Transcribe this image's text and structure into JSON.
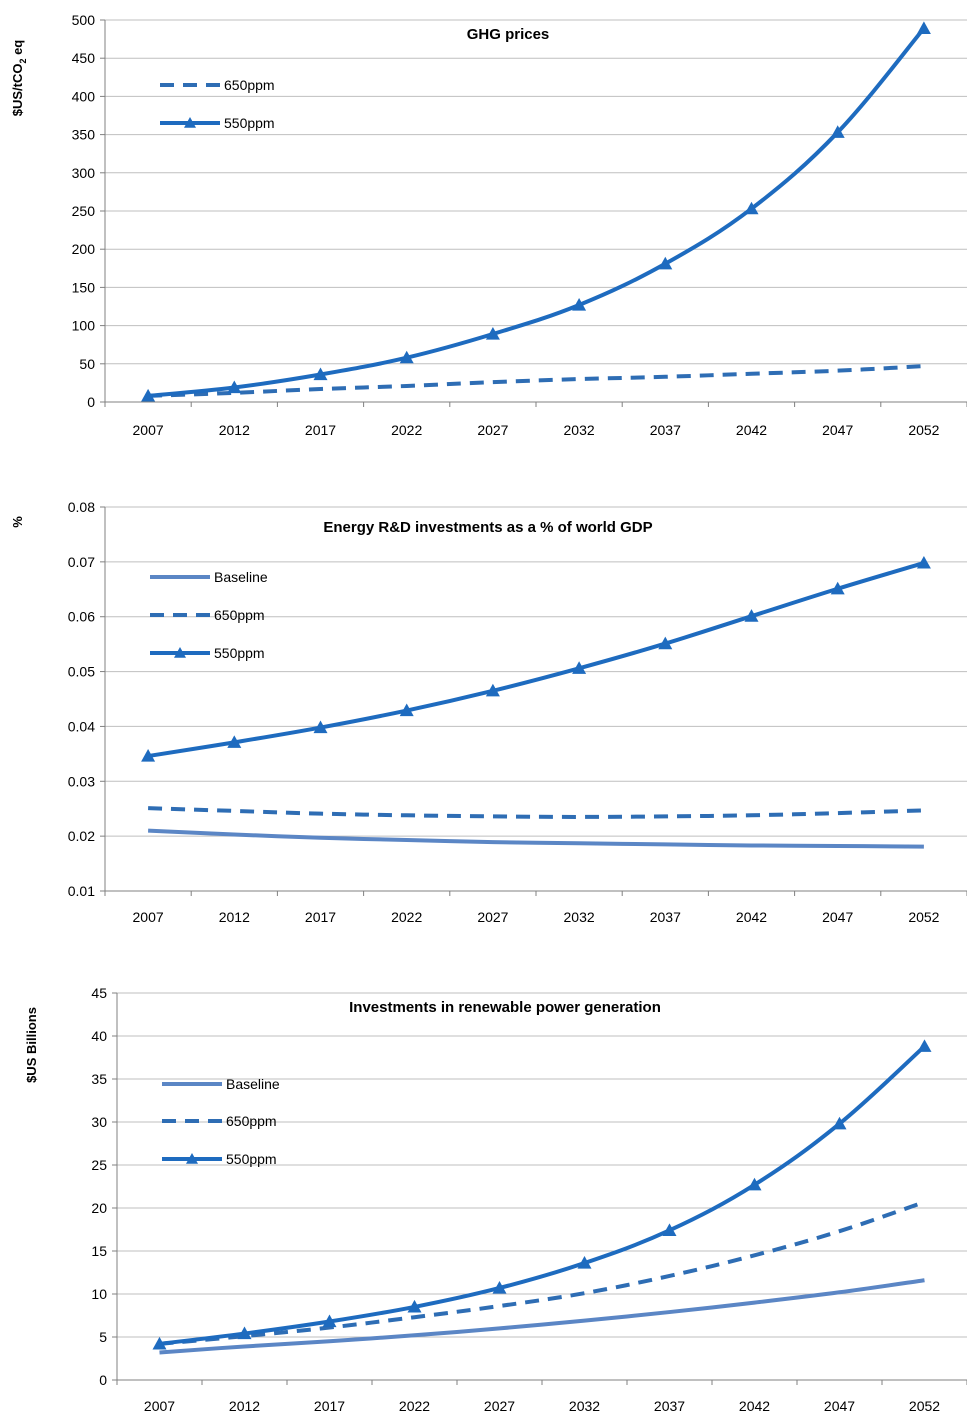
{
  "colors": {
    "baseline": "#5B86C5",
    "ppm650": "#2E6DB4",
    "ppm550": "#1E6BBF",
    "grid": "#BFBFBF",
    "axis": "#808080"
  },
  "chart_data": [
    {
      "type": "line",
      "title": "GHG prices",
      "xlabel": "",
      "ylabel": "$US/tCO",
      "ylabel_sub": "2",
      "ylabel_suffix": " eq",
      "categories": [
        "2007",
        "2012",
        "2017",
        "2022",
        "2027",
        "2032",
        "2037",
        "2042",
        "2047",
        "2052"
      ],
      "ylim": [
        0,
        500
      ],
      "yticks": [
        0,
        50,
        100,
        150,
        200,
        250,
        300,
        350,
        400,
        450,
        500
      ],
      "ytick_labels": [
        "0",
        "50",
        "100",
        "150",
        "200",
        "250",
        "300",
        "350",
        "400",
        "450",
        "500"
      ],
      "grid": true,
      "legend_position": "top-left",
      "series": [
        {
          "name": "650ppm",
          "style": "dashed",
          "values": [
            8,
            12,
            17,
            21,
            26,
            30,
            33,
            37,
            41,
            47
          ]
        },
        {
          "name": "550ppm",
          "style": "solid-triangle",
          "values": [
            8,
            19,
            36,
            58,
            89,
            127,
            181,
            253,
            353,
            489
          ]
        }
      ]
    },
    {
      "type": "line",
      "title": "Energy R&D investments as a % of world GDP",
      "xlabel": "",
      "ylabel": "%",
      "categories": [
        "2007",
        "2012",
        "2017",
        "2022",
        "2027",
        "2032",
        "2037",
        "2042",
        "2047",
        "2052"
      ],
      "ylim": [
        0.01,
        0.08
      ],
      "yticks": [
        0.01,
        0.02,
        0.03,
        0.04,
        0.05,
        0.06,
        0.07,
        0.08
      ],
      "ytick_labels": [
        "0.01",
        "0.02",
        "0.03",
        "0.04",
        "0.05",
        "0.06",
        "0.07",
        "0.08"
      ],
      "grid": true,
      "legend_position": "top-left",
      "series": [
        {
          "name": "Baseline",
          "style": "solid",
          "values": [
            0.021,
            0.0203,
            0.0197,
            0.0193,
            0.0189,
            0.0187,
            0.0185,
            0.0183,
            0.0182,
            0.0181
          ]
        },
        {
          "name": "650ppm",
          "style": "dashed",
          "values": [
            0.0251,
            0.0246,
            0.0241,
            0.0238,
            0.0236,
            0.0235,
            0.0236,
            0.0238,
            0.0242,
            0.0247
          ]
        },
        {
          "name": "550ppm",
          "style": "solid-triangle",
          "values": [
            0.0346,
            0.0371,
            0.0398,
            0.0429,
            0.0465,
            0.0506,
            0.0551,
            0.0601,
            0.0651,
            0.0698
          ]
        }
      ]
    },
    {
      "type": "line",
      "title": "Investments in renewable power generation",
      "xlabel": "",
      "ylabel": "$US Billions",
      "categories": [
        "2007",
        "2012",
        "2017",
        "2022",
        "2027",
        "2032",
        "2037",
        "2042",
        "2047",
        "2052"
      ],
      "ylim": [
        0,
        45
      ],
      "yticks": [
        0,
        5,
        10,
        15,
        20,
        25,
        30,
        35,
        40,
        45
      ],
      "ytick_labels": [
        "0",
        "5",
        "10",
        "15",
        "20",
        "25",
        "30",
        "35",
        "40",
        "45"
      ],
      "grid": true,
      "legend_position": "top-left",
      "series": [
        {
          "name": "Baseline",
          "style": "solid",
          "values": [
            3.2,
            3.9,
            4.5,
            5.2,
            6.0,
            6.9,
            7.9,
            9.0,
            10.2,
            11.6
          ]
        },
        {
          "name": "650ppm",
          "style": "dashed",
          "values": [
            4.2,
            5.1,
            6.1,
            7.3,
            8.6,
            10.1,
            12.1,
            14.5,
            17.3,
            20.7
          ]
        },
        {
          "name": "550ppm",
          "style": "solid-triangle",
          "values": [
            4.2,
            5.4,
            6.8,
            8.5,
            10.7,
            13.6,
            17.4,
            22.7,
            29.8,
            38.8
          ]
        }
      ]
    }
  ]
}
